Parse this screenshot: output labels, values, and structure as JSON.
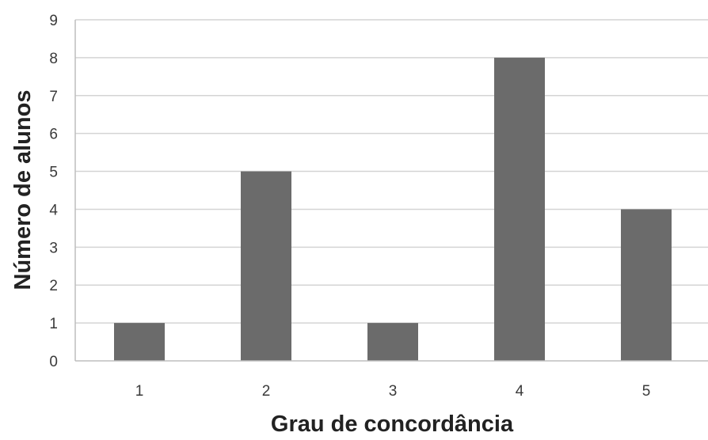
{
  "chart_data": {
    "type": "bar",
    "title": "",
    "xlabel": "Grau de concordância",
    "ylabel": "Número de alunos",
    "categories": [
      "1",
      "2",
      "3",
      "4",
      "5"
    ],
    "values": [
      1,
      5,
      1,
      8,
      4
    ],
    "ylim": [
      0,
      9
    ],
    "yticks": [
      "0",
      "1",
      "2",
      "3",
      "4",
      "5",
      "6",
      "7",
      "8",
      "9"
    ],
    "grid": true,
    "legend": "none",
    "colors": {
      "bar": "#6b6b6b",
      "grid": "#d4d4d4",
      "axis": "#bdbdbd"
    }
  }
}
